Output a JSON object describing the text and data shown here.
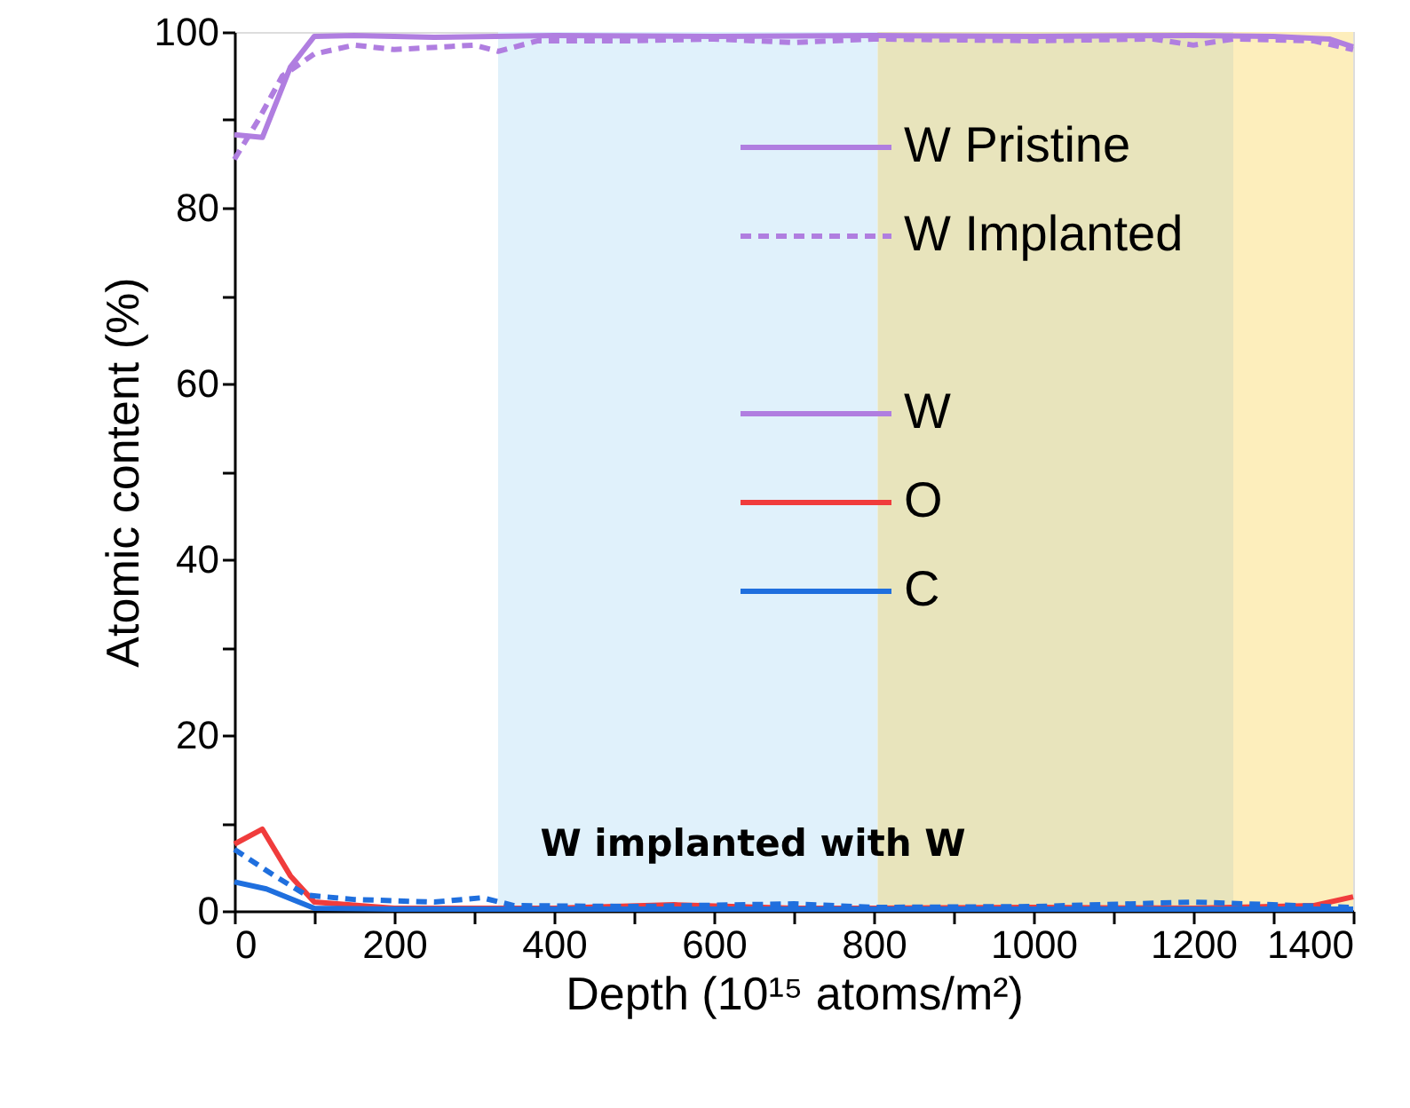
{
  "chart_data": {
    "type": "line",
    "xlabel": "Depth (10¹⁵ atoms/m²)",
    "ylabel": "Atomic content (%)",
    "xlim": [
      0,
      1400
    ],
    "ylim": [
      0,
      100
    ],
    "xticks": [
      0,
      {
        "value": 100,
        "label": null
      },
      200,
      {
        "value": 300,
        "label": null
      },
      400,
      {
        "value": 500,
        "label": null
      },
      600,
      {
        "value": 700,
        "label": null
      },
      800,
      {
        "value": 900,
        "label": null
      },
      1000,
      {
        "value": 1100,
        "label": null
      },
      1200,
      {
        "value": 1300,
        "label": null
      },
      1400
    ],
    "yticks": [
      0,
      {
        "value": 10,
        "label": null
      },
      20,
      {
        "value": 30,
        "label": null
      },
      40,
      {
        "value": 50,
        "label": null
      },
      60,
      {
        "value": 70,
        "label": null
      },
      80,
      {
        "value": 90,
        "label": null
      },
      100
    ],
    "grid": false,
    "legend": "top right",
    "marker": "none",
    "bands": [
      {
        "axis": "x",
        "from": 330,
        "to": 805,
        "color": "#e0f1fb"
      },
      {
        "axis": "x",
        "from": 805,
        "to": 1250,
        "color": "#e8e4bc"
      },
      {
        "axis": "x",
        "from": 1250,
        "to": 1400,
        "color": "#fdeebc"
      }
    ],
    "annotations": [
      "W",
      "W implanted with W"
    ],
    "series": [
      {
        "name": "W Pristine",
        "color": "#b07ee0",
        "line_style": "solid",
        "x": [
          0,
          35,
          70,
          100,
          150,
          250,
          400,
          600,
          800,
          1000,
          1200,
          1300,
          1370,
          1400
        ],
        "values": [
          88.3,
          88.0,
          96.0,
          99.5,
          99.6,
          99.4,
          99.6,
          99.5,
          99.6,
          99.5,
          99.6,
          99.5,
          99.2,
          98.3
        ]
      },
      {
        "name": "W Implanted",
        "color": "#b07ee0",
        "line_style": "dashed",
        "x": [
          0,
          30,
          60,
          100,
          150,
          200,
          300,
          330,
          380,
          500,
          600,
          700,
          800,
          1000,
          1150,
          1200,
          1250,
          1350,
          1400
        ],
        "values": [
          85.5,
          90.0,
          95.0,
          97.5,
          98.5,
          98.0,
          98.5,
          97.8,
          99.0,
          99.0,
          99.2,
          98.8,
          99.2,
          99.0,
          99.2,
          98.5,
          99.2,
          99.0,
          98.0
        ]
      },
      {
        "name": "O",
        "color": "#f03c3c",
        "line_style": "solid",
        "x": [
          0,
          35,
          70,
          100,
          200,
          300,
          400,
          550,
          700,
          800,
          1000,
          1200,
          1350,
          1400
        ],
        "values": [
          7.6,
          9.3,
          4.0,
          1.0,
          0.3,
          0.3,
          0.3,
          0.7,
          0.3,
          0.3,
          0.4,
          0.3,
          0.6,
          1.6
        ]
      },
      {
        "name": "C",
        "color": "#1f6fde",
        "line_style": "solid",
        "x": [
          0,
          40,
          100,
          200,
          400,
          600,
          800,
          1000,
          1200,
          1400
        ],
        "values": [
          3.3,
          2.5,
          0.3,
          0.2,
          0.2,
          0.2,
          0.2,
          0.2,
          0.2,
          0.2
        ]
      },
      {
        "color": "#1f6fde",
        "line_style": "dashed",
        "x": [
          0,
          50,
          90,
          150,
          250,
          310,
          350,
          500,
          700,
          800,
          1000,
          1200,
          1400
        ],
        "values": [
          7.0,
          4.0,
          1.8,
          1.3,
          1.0,
          1.5,
          0.6,
          0.5,
          0.8,
          0.4,
          0.5,
          1.0,
          0.4
        ]
      }
    ]
  }
}
